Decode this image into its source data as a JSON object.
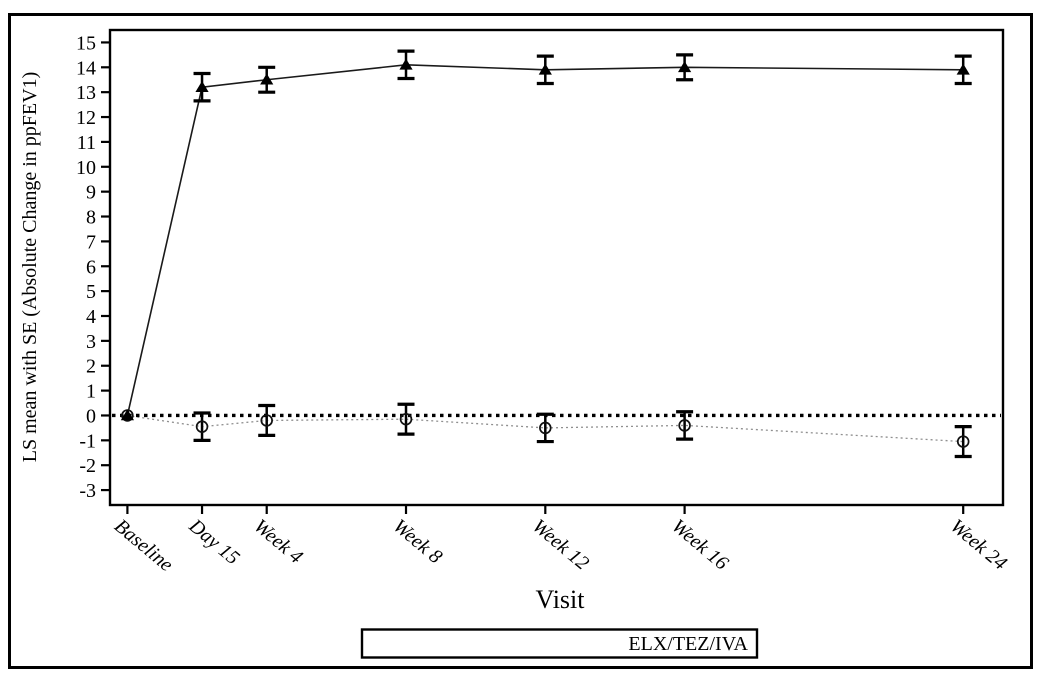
{
  "figure": {
    "y_axis_title": "LS mean with SE (Absolute Change in ppFEV1)",
    "x_axis_title": "Visit",
    "legend_label": "ELX/TEZ/IVA"
  },
  "chart_data": {
    "type": "line",
    "title": "",
    "ylabel": "LS mean with SE (Absolute Change in ppFEV1)",
    "xlabel": "Visit",
    "categories": [
      "Baseline",
      "Day 15",
      "Week 4",
      "Week 8",
      "Week 12",
      "Week 16",
      "Week 24"
    ],
    "x_days": [
      0,
      15,
      28,
      56,
      84,
      112,
      168
    ],
    "xlim_days": [
      -3.5,
      176
    ],
    "ylim": [
      -3.6,
      15.5
    ],
    "yticks": [
      -3,
      -2,
      -1,
      0,
      1,
      2,
      3,
      4,
      5,
      6,
      7,
      8,
      9,
      10,
      11,
      12,
      13,
      14,
      15
    ],
    "grid": "off",
    "reference_line_y": 0,
    "error_bars": "SE",
    "legend_position": "bottom-center-box",
    "legend_entries": [
      "ELX/TEZ/IVA"
    ],
    "colors": {
      "axis": "#000000",
      "treatment_line": "#1a1a1a",
      "unlabeled_series_line": "#8f8f8f",
      "reference_line": "#000000"
    },
    "series": [
      {
        "name": "",
        "marker": "open-circle",
        "line_style": "dotted",
        "color": "#8f8f8f",
        "values": [
          0,
          -0.45,
          -0.2,
          -0.15,
          -0.5,
          -0.4,
          -1.05
        ],
        "se": [
          0,
          0.55,
          0.6,
          0.6,
          0.55,
          0.55,
          0.6
        ]
      },
      {
        "name": "ELX/TEZ/IVA",
        "marker": "filled-triangle",
        "line_style": "solid",
        "color": "#1a1a1a",
        "values": [
          0,
          13.2,
          13.5,
          14.1,
          13.9,
          14.0,
          13.9
        ],
        "se": [
          0,
          0.55,
          0.5,
          0.55,
          0.55,
          0.5,
          0.55
        ]
      }
    ]
  }
}
